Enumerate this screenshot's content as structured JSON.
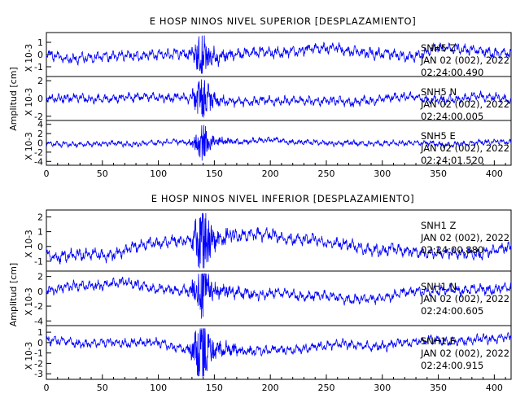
{
  "chart_data": [
    {
      "type": "line",
      "title": "E HOSP NINOS NIVEL SUPERIOR [DESPLAZAMIENTO]",
      "ylabel": "Amplitud [cm]",
      "xlim": [
        0,
        415
      ],
      "xticks": [
        0,
        50,
        100,
        150,
        200,
        250,
        300,
        350,
        400
      ],
      "line_color": "#0000ff",
      "traces": [
        {
          "label": "SNH5   Z",
          "stamp_date": "JAN 02 (002), 2022",
          "stamp_time": "02:24:00.490",
          "multiplier": "X 10-3",
          "ylim": [
            -1.6,
            1.6
          ],
          "yticks": [
            -1,
            0,
            1
          ],
          "peak_time": 138,
          "peak_amp": 1.5,
          "noise_amp": 0.45,
          "drift": 0.1,
          "seed": 11
        },
        {
          "label": "SNH5   N",
          "stamp_date": "JAN 02 (002), 2022",
          "stamp_time": "02:24:00.005",
          "multiplier": "X 10-3",
          "ylim": [
            -2.2,
            2.2
          ],
          "yticks": [
            -2,
            0,
            2
          ],
          "peak_time": 138,
          "peak_amp": 2.1,
          "noise_amp": 0.5,
          "drift": 0.15,
          "seed": 23
        },
        {
          "label": "SNH5   E",
          "stamp_date": "JAN 02 (002), 2022",
          "stamp_time": "02:24:01.520",
          "multiplier": "X 10-3",
          "ylim": [
            -4.3,
            4.3
          ],
          "yticks": [
            -4,
            -2,
            0,
            2,
            4
          ],
          "peak_time": 138,
          "peak_amp": 3.5,
          "noise_amp": 0.6,
          "drift": 0.3,
          "seed": 37
        }
      ]
    },
    {
      "type": "line",
      "title": "E HOSP NINOS NIVEL INFERIOR [DESPLAZAMIENTO]",
      "ylabel": "Amplitud [cm]",
      "xlim": [
        0,
        415
      ],
      "xticks": [
        0,
        50,
        100,
        150,
        200,
        250,
        300,
        350,
        400
      ],
      "line_color": "#0000ff",
      "traces": [
        {
          "label": "SNH1   Z",
          "stamp_date": "JAN 02 (002), 2022",
          "stamp_time": "02:24:00.880",
          "multiplier": "X 10-3",
          "ylim": [
            -1.5,
            2.3
          ],
          "yticks": [
            -1,
            0,
            1,
            2
          ],
          "peak_time": 138,
          "peak_amp": 2.2,
          "noise_amp": 0.4,
          "drift": 0.6,
          "seed": 51
        },
        {
          "label": "SNH1   N",
          "stamp_date": "JAN 02 (002), 2022",
          "stamp_time": "02:24:00.605",
          "multiplier": "X 10-3",
          "ylim": [
            -4.3,
            2.4
          ],
          "yticks": [
            -4,
            -2,
            0,
            2
          ],
          "peak_time": 138,
          "peak_amp": 3.4,
          "noise_amp": 0.7,
          "drift": 0.9,
          "seed": 67
        },
        {
          "label": "SNH1   E",
          "stamp_date": "JAN 02 (002), 2022",
          "stamp_time": "02:24:00.915",
          "multiplier": "X 10-3",
          "ylim": [
            -3.3,
            1.4
          ],
          "yticks": [
            -3,
            -2,
            -1,
            0,
            1
          ],
          "peak_time": 138,
          "peak_amp": 3.1,
          "noise_amp": 0.45,
          "drift": 0.35,
          "seed": 83
        }
      ]
    }
  ]
}
